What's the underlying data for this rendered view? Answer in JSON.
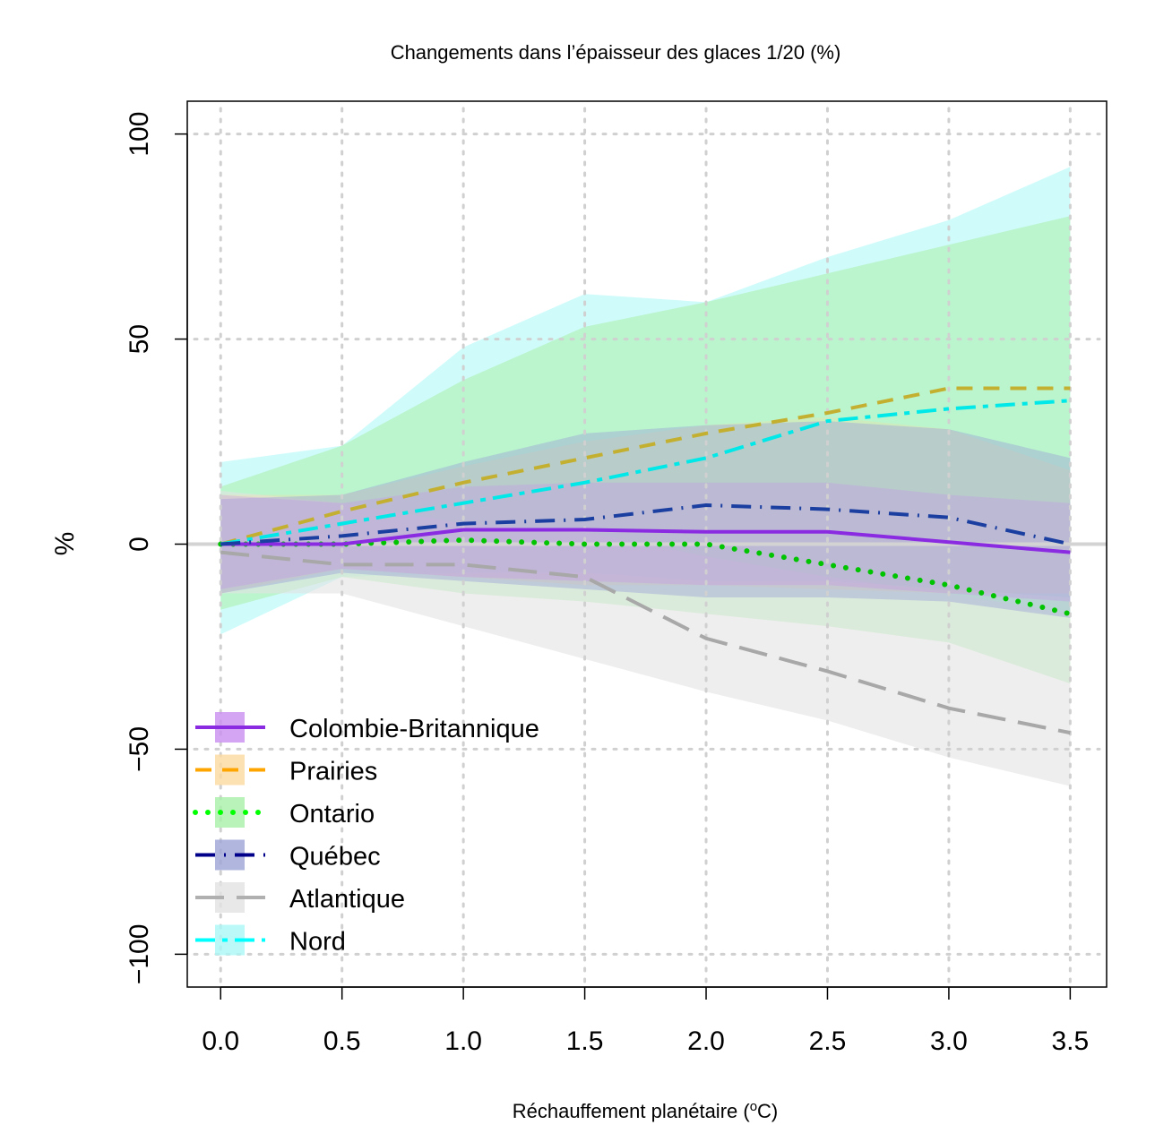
{
  "chart_data": {
    "type": "line",
    "title": "Changements dans l’épaisseur des glaces 1/20 (%)",
    "xlabel": "Réchauffement planétaire (",
    "xlabel_sup": "o",
    "xlabel_tail": "C)",
    "ylabel": "%",
    "xlim": [
      -0.1375,
      3.65
    ],
    "ylim": [
      -108,
      108
    ],
    "x_ticks": [
      0.0,
      0.5,
      1.0,
      1.5,
      2.0,
      2.5,
      3.0,
      3.5
    ],
    "x_tick_labels": [
      "0.0",
      "0.5",
      "1.0",
      "1.5",
      "2.0",
      "2.5",
      "3.0",
      "3.5"
    ],
    "y_ticks": [
      100,
      50,
      0,
      -50,
      -100
    ],
    "y_tick_labels": [
      "100",
      "50",
      "0",
      "−50",
      "−100"
    ],
    "grid": true,
    "legend_position": "bottom-left",
    "x": [
      0.0,
      0.5,
      1.0,
      1.5,
      2.0,
      2.5,
      3.0,
      3.5
    ],
    "series": [
      {
        "name": "Colombie-Britannique",
        "color": "#8a2be2",
        "band_color": "#c88ef0",
        "dash": "solid",
        "values": [
          0,
          0,
          3.5,
          3.5,
          3,
          3,
          0.5,
          -2
        ],
        "upper": [
          12,
          10,
          14,
          15,
          15,
          15,
          12,
          10
        ],
        "lower": [
          -11,
          -6,
          -8,
          -9,
          -10,
          -10,
          -12,
          -14
        ]
      },
      {
        "name": "Prairies",
        "color": "#ffa500",
        "line_color": "#c4b030",
        "band_color": "#fbd9a0",
        "dash": "dash",
        "values": [
          0,
          8,
          15,
          21,
          27,
          32,
          38,
          38
        ],
        "upper": [
          12,
          12,
          19,
          25,
          29,
          31,
          28,
          18
        ],
        "lower": [
          -12,
          -6,
          -8,
          -10,
          -10,
          -11,
          -12,
          -12
        ]
      },
      {
        "name": "Ontario",
        "color": "#00ff00",
        "line_color": "#00c400",
        "band_color": "#a8f0a8",
        "dash": "dot",
        "values": [
          0,
          0,
          1,
          0,
          0,
          -5,
          -10,
          -17
        ],
        "upper": [
          14,
          24,
          40,
          53,
          59,
          66,
          73,
          80
        ],
        "lower": [
          -16,
          -8,
          -12,
          -14,
          -17,
          -20,
          -24,
          -34
        ]
      },
      {
        "name": "Québec",
        "color": "#00008b",
        "line_color": "#1a3fa0",
        "band_color": "#9da4d6",
        "dash": "dashdot",
        "values": [
          0,
          2,
          5,
          6,
          9.5,
          8.5,
          6.5,
          0
        ],
        "upper": [
          11,
          12,
          20,
          27,
          29,
          30,
          28,
          21
        ],
        "lower": [
          -12,
          -7,
          -9,
          -11,
          -13,
          -13,
          -14,
          -18
        ]
      },
      {
        "name": "Atlantique",
        "color": "#b0b0b0",
        "line_color": "#a8a8a8",
        "band_color": "#e2e2e2",
        "dash": "longdash",
        "values": [
          -2,
          -5,
          -5,
          -8,
          -23,
          -31,
          -40,
          -46
        ],
        "upper": [
          13,
          10,
          5,
          3,
          -3,
          -8,
          -12,
          -17
        ],
        "lower": [
          -12,
          -12,
          -20,
          -28,
          -36,
          -43,
          -52,
          -59
        ]
      },
      {
        "name": "Nord",
        "color": "#00ffff",
        "line_color": "#00e8e8",
        "band_color": "#aaf8f8",
        "dash": "dashdot2",
        "values": [
          0,
          5,
          10,
          15,
          21,
          30,
          33,
          35
        ],
        "upper": [
          20,
          24,
          48,
          61,
          59,
          70,
          79,
          92
        ],
        "lower": [
          -22,
          -8,
          -7,
          -7,
          -9,
          -9,
          -11,
          -13
        ]
      }
    ]
  }
}
